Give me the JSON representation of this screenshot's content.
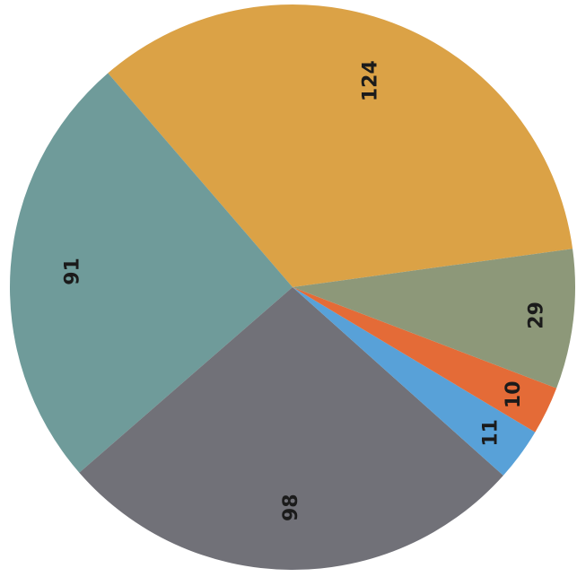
{
  "chart_data": {
    "type": "pie",
    "title": "",
    "legend": "none",
    "slices": [
      {
        "value": 124,
        "label": "124",
        "color": "#dba246"
      },
      {
        "value": 91,
        "label": "91",
        "color": "#6f9b9a"
      },
      {
        "value": 98,
        "label": "98",
        "color": "#717178"
      },
      {
        "value": 11,
        "label": "11",
        "color": "#58a1d8"
      },
      {
        "value": 10,
        "label": "10",
        "color": "#e46b37"
      },
      {
        "value": 29,
        "label": "29",
        "color": "#8d9879"
      }
    ]
  }
}
